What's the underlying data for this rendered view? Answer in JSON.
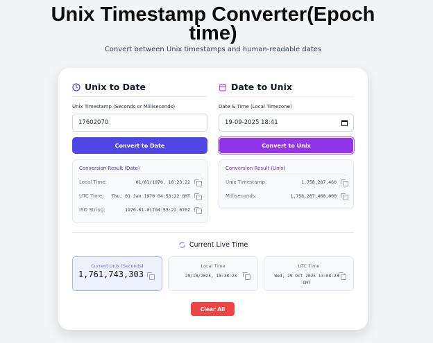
{
  "header": {
    "title": "Unix Timestamp Converter(Epoch time)",
    "subtitle": "Convert between Unix timestamps and human-readable dates"
  },
  "unix_to_date": {
    "heading": "Unix to Date",
    "icon": "clock-icon",
    "label": "Unix Timestamp (Seconds or Milliseconds)",
    "value": "17602070",
    "button": "Convert to Date",
    "result": {
      "title": "Conversion Result (Date)",
      "rows": [
        {
          "key": "Local Time:",
          "value": "01/01/1970, 10:23:22"
        },
        {
          "key": "UTC Time:",
          "value": "Thu, 01 Jan 1970 04:53:22 GMT"
        },
        {
          "key": "ISO String:",
          "value": "1970-01-01T04:53:22.070Z"
        }
      ]
    }
  },
  "date_to_unix": {
    "heading": "Date to Unix",
    "icon": "calendar-icon",
    "label": "Date & Time (Local Timezone)",
    "value": "19-09-2025 18:41",
    "button": "Convert to Unix",
    "result": {
      "title": "Conversion Result (Unix)",
      "rows": [
        {
          "key": "Unix Timestamp:",
          "value": "1,758,287,460"
        },
        {
          "key": "Milliseconds:",
          "value": "1,758,287,460,000"
        }
      ]
    }
  },
  "live": {
    "heading": "Current Live Time",
    "icon": "refresh-icon",
    "tiles": [
      {
        "title": "Current Unix (Seconds)",
        "value": "1,761,743,303"
      },
      {
        "title": "Local Time",
        "value": "29/10/2025, 18:38:23"
      },
      {
        "title": "UTC Time",
        "value": "Wed, 29 Oct 2025 13:08:23 GMT"
      }
    ]
  },
  "clear_button": "Clear All",
  "colors": {
    "indigo": "#4f46e5",
    "purple": "#9333ea",
    "red": "#ef4444"
  }
}
